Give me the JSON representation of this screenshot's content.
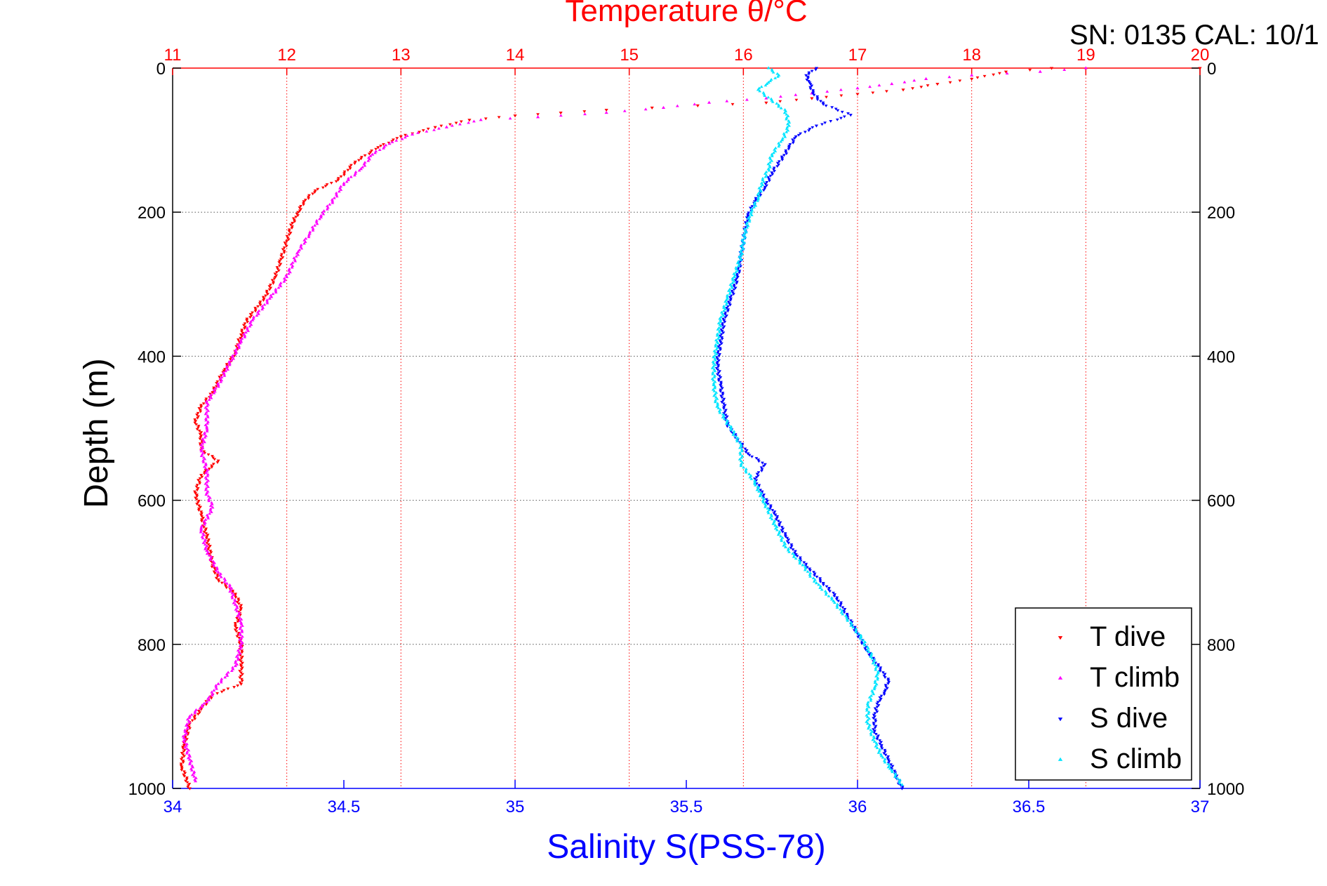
{
  "header": {
    "top_title": "Temperature θ/°C",
    "serial_text": "SN: 0135  CAL: 10/1"
  },
  "colors": {
    "temperature_axis": "#ff0000",
    "salinity_axis": "#0000ff",
    "t_dive": "#ff0000",
    "t_climb": "#ff00ff",
    "s_dive": "#0000ff",
    "s_climb": "#00e5ff"
  },
  "chart_data": {
    "type": "scatter",
    "ylabel": "Depth (m)",
    "xlabel_bottom": "Salinity S(PSS-78)",
    "xlabel_top": "Temperature θ/°C",
    "ylim": [
      0,
      1000
    ],
    "y_reversed": true,
    "x_bottom_lim": [
      34,
      37
    ],
    "x_top_lim": [
      11,
      20
    ],
    "y_ticks": [
      "0",
      "200",
      "400",
      "600",
      "800",
      "1000"
    ],
    "y_ticks_right": [
      "0",
      "200",
      "400",
      "600",
      "800",
      "1000"
    ],
    "x_bottom_ticks": [
      "34",
      "34.5",
      "35",
      "35.5",
      "36",
      "36.5",
      "37"
    ],
    "x_top_ticks": [
      "11",
      "12",
      "13",
      "14",
      "15",
      "16",
      "17",
      "18",
      "19",
      "20"
    ],
    "grid": "dotted vertical at temperature ticks, horizontal at depth ticks",
    "legend_position": "bottom-right",
    "series": [
      {
        "name": "T dive",
        "axis": "top",
        "marker": "down-triangle",
        "points": [
          [
            20,
            0
          ],
          [
            18.7,
            0
          ],
          [
            18.3,
            5
          ],
          [
            18.0,
            15
          ],
          [
            17.7,
            22
          ],
          [
            17.4,
            30
          ],
          [
            17.0,
            36
          ],
          [
            16.6,
            42
          ],
          [
            16.2,
            48
          ],
          [
            15.6,
            52
          ],
          [
            15.2,
            55
          ],
          [
            14.8,
            58
          ],
          [
            14.4,
            62
          ],
          [
            14.0,
            66
          ],
          [
            13.6,
            72
          ],
          [
            13.3,
            82
          ],
          [
            13.0,
            95
          ],
          [
            12.8,
            110
          ],
          [
            12.6,
            130
          ],
          [
            12.45,
            155
          ],
          [
            12.25,
            170
          ],
          [
            12.15,
            185
          ],
          [
            12.1,
            200
          ],
          [
            12.05,
            215
          ],
          [
            12.0,
            240
          ],
          [
            11.95,
            265
          ],
          [
            11.9,
            290
          ],
          [
            11.8,
            320
          ],
          [
            11.65,
            350
          ],
          [
            11.6,
            370
          ],
          [
            11.55,
            395
          ],
          [
            11.45,
            420
          ],
          [
            11.35,
            450
          ],
          [
            11.25,
            470
          ],
          [
            11.2,
            490
          ],
          [
            11.25,
            510
          ],
          [
            11.25,
            530
          ],
          [
            11.4,
            545
          ],
          [
            11.25,
            565
          ],
          [
            11.2,
            590
          ],
          [
            11.25,
            620
          ],
          [
            11.3,
            650
          ],
          [
            11.35,
            690
          ],
          [
            11.4,
            710
          ],
          [
            11.55,
            730
          ],
          [
            11.6,
            750
          ],
          [
            11.55,
            775
          ],
          [
            11.6,
            800
          ],
          [
            11.6,
            830
          ],
          [
            11.6,
            855
          ],
          [
            11.35,
            870
          ],
          [
            11.25,
            890
          ],
          [
            11.15,
            910
          ],
          [
            11.1,
            940
          ],
          [
            11.08,
            970
          ],
          [
            11.15,
            1000
          ]
        ]
      },
      {
        "name": "T climb",
        "axis": "top",
        "marker": "up-triangle",
        "points": [
          [
            19.0,
            0
          ],
          [
            18.6,
            5
          ],
          [
            18.0,
            10
          ],
          [
            17.6,
            15
          ],
          [
            17.3,
            22
          ],
          [
            17.0,
            28
          ],
          [
            16.6,
            35
          ],
          [
            16.2,
            42
          ],
          [
            15.7,
            48
          ],
          [
            15.3,
            55
          ],
          [
            14.8,
            62
          ],
          [
            14.2,
            68
          ],
          [
            13.7,
            72
          ],
          [
            13.4,
            82
          ],
          [
            13.1,
            92
          ],
          [
            12.9,
            105
          ],
          [
            12.75,
            120
          ],
          [
            12.65,
            140
          ],
          [
            12.5,
            160
          ],
          [
            12.4,
            185
          ],
          [
            12.3,
            205
          ],
          [
            12.2,
            230
          ],
          [
            12.1,
            255
          ],
          [
            12.0,
            290
          ],
          [
            11.85,
            320
          ],
          [
            11.7,
            350
          ],
          [
            11.6,
            380
          ],
          [
            11.5,
            410
          ],
          [
            11.4,
            440
          ],
          [
            11.3,
            465
          ],
          [
            11.3,
            500
          ],
          [
            11.25,
            530
          ],
          [
            11.3,
            560
          ],
          [
            11.3,
            590
          ],
          [
            11.35,
            610
          ],
          [
            11.25,
            640
          ],
          [
            11.3,
            670
          ],
          [
            11.4,
            700
          ],
          [
            11.5,
            720
          ],
          [
            11.55,
            745
          ],
          [
            11.6,
            770
          ],
          [
            11.6,
            800
          ],
          [
            11.55,
            830
          ],
          [
            11.4,
            855
          ],
          [
            11.3,
            880
          ],
          [
            11.15,
            900
          ],
          [
            11.1,
            930
          ],
          [
            11.15,
            960
          ],
          [
            11.2,
            990
          ]
        ]
      },
      {
        "name": "S dive",
        "axis": "bottom",
        "marker": "down-triangle",
        "points": [
          [
            35.88,
            0
          ],
          [
            35.85,
            10
          ],
          [
            35.86,
            20
          ],
          [
            35.87,
            35
          ],
          [
            35.9,
            50
          ],
          [
            35.98,
            65
          ],
          [
            35.88,
            80
          ],
          [
            35.82,
            95
          ],
          [
            35.8,
            110
          ],
          [
            35.78,
            125
          ],
          [
            35.75,
            145
          ],
          [
            35.73,
            165
          ],
          [
            35.7,
            185
          ],
          [
            35.68,
            205
          ],
          [
            35.67,
            230
          ],
          [
            35.66,
            260
          ],
          [
            35.65,
            290
          ],
          [
            35.63,
            320
          ],
          [
            35.61,
            350
          ],
          [
            35.6,
            380
          ],
          [
            35.59,
            410
          ],
          [
            35.6,
            440
          ],
          [
            35.61,
            470
          ],
          [
            35.62,
            495
          ],
          [
            35.65,
            515
          ],
          [
            35.68,
            535
          ],
          [
            35.73,
            550
          ],
          [
            35.7,
            570
          ],
          [
            35.72,
            590
          ],
          [
            35.76,
            620
          ],
          [
            35.79,
            650
          ],
          [
            35.82,
            675
          ],
          [
            35.86,
            695
          ],
          [
            35.9,
            715
          ],
          [
            35.94,
            735
          ],
          [
            35.97,
            760
          ],
          [
            36.0,
            785
          ],
          [
            36.03,
            810
          ],
          [
            36.06,
            830
          ],
          [
            36.09,
            850
          ],
          [
            36.08,
            865
          ],
          [
            36.06,
            880
          ],
          [
            36.05,
            900
          ],
          [
            36.05,
            920
          ],
          [
            36.07,
            940
          ],
          [
            36.09,
            960
          ],
          [
            36.11,
            980
          ],
          [
            36.13,
            1000
          ]
        ]
      },
      {
        "name": "S climb",
        "axis": "bottom",
        "marker": "up-triangle",
        "points": [
          [
            35.74,
            0
          ],
          [
            35.77,
            10
          ],
          [
            35.74,
            20
          ],
          [
            35.71,
            30
          ],
          [
            35.75,
            45
          ],
          [
            35.79,
            60
          ],
          [
            35.8,
            80
          ],
          [
            35.78,
            100
          ],
          [
            35.75,
            120
          ],
          [
            35.74,
            140
          ],
          [
            35.72,
            160
          ],
          [
            35.71,
            180
          ],
          [
            35.69,
            200
          ],
          [
            35.67,
            230
          ],
          [
            35.66,
            260
          ],
          [
            35.64,
            290
          ],
          [
            35.62,
            320
          ],
          [
            35.6,
            350
          ],
          [
            35.59,
            380
          ],
          [
            35.58,
            410
          ],
          [
            35.58,
            440
          ],
          [
            35.59,
            470
          ],
          [
            35.63,
            500
          ],
          [
            35.66,
            525
          ],
          [
            35.66,
            550
          ],
          [
            35.7,
            575
          ],
          [
            35.73,
            605
          ],
          [
            35.76,
            635
          ],
          [
            35.79,
            665
          ],
          [
            35.84,
            690
          ],
          [
            35.88,
            715
          ],
          [
            35.93,
            740
          ],
          [
            35.97,
            765
          ],
          [
            36.01,
            790
          ],
          [
            36.04,
            815
          ],
          [
            36.06,
            840
          ],
          [
            36.05,
            860
          ],
          [
            36.03,
            885
          ],
          [
            36.03,
            910
          ],
          [
            36.05,
            935
          ],
          [
            36.07,
            955
          ],
          [
            36.1,
            975
          ],
          [
            36.13,
            995
          ]
        ]
      }
    ]
  },
  "legend": {
    "items": [
      "T dive",
      "T climb",
      "S dive",
      "S climb"
    ]
  }
}
